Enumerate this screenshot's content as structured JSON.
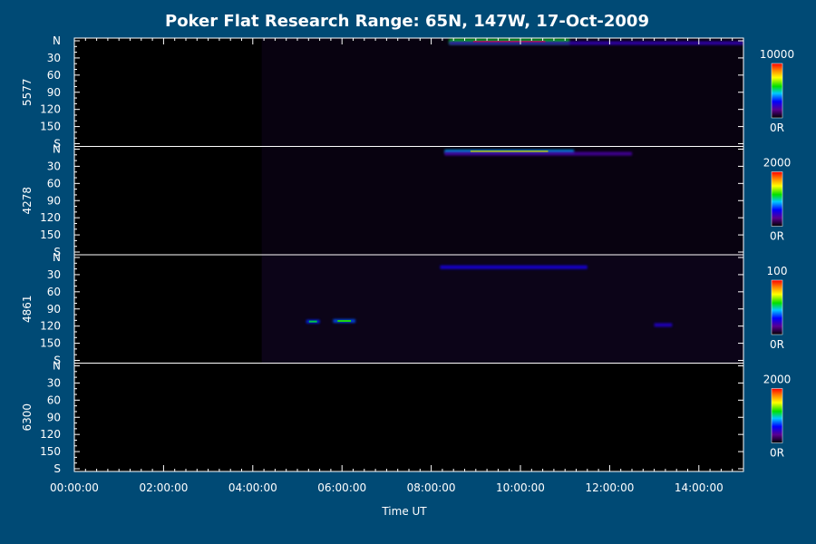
{
  "chart_data": {
    "type": "heatmap",
    "title": "Poker Flat Research Range: 65N, 147W, 17-Oct-2009",
    "xlabel": "Time UT",
    "x_ticks": [
      "00:00:00",
      "02:00:00",
      "04:00:00",
      "06:00:00",
      "08:00:00",
      "10:00:00",
      "12:00:00",
      "14:00:00"
    ],
    "x_range_hours": [
      0,
      15
    ],
    "y_ticks": [
      "N",
      "30",
      "60",
      "90",
      "120",
      "150",
      "S"
    ],
    "y_range": [
      0,
      180
    ],
    "data_start_hours": [
      4.2,
      4.2,
      4.2,
      15
    ],
    "panels": [
      {
        "name": "5577",
        "colorbar": {
          "max_label": "10000",
          "min_label": "0R"
        },
        "features": [
          {
            "t_start": 8.4,
            "t_end": 11.1,
            "y": 1.5,
            "intensity": 0.95,
            "note": "bright band"
          },
          {
            "t_start": 8.4,
            "t_end": 15.0,
            "y": 4,
            "intensity": 0.35
          }
        ]
      },
      {
        "name": "4278",
        "colorbar": {
          "max_label": "2000",
          "min_label": "0R"
        },
        "features": [
          {
            "t_start": 8.3,
            "t_end": 11.2,
            "y": 4,
            "intensity": 0.7
          },
          {
            "t_start": 8.3,
            "t_end": 12.5,
            "y": 8,
            "intensity": 0.3
          }
        ]
      },
      {
        "name": "4861",
        "colorbar": {
          "max_label": "100",
          "min_label": "0R"
        },
        "features": [
          {
            "t_start": 8.2,
            "t_end": 11.5,
            "y": 17,
            "intensity": 0.45
          },
          {
            "t_start": 5.2,
            "t_end": 5.5,
            "y": 112,
            "intensity": 0.55
          },
          {
            "t_start": 5.8,
            "t_end": 6.3,
            "y": 111,
            "intensity": 0.6
          },
          {
            "t_start": 13.0,
            "t_end": 13.4,
            "y": 118,
            "intensity": 0.4
          }
        ]
      },
      {
        "name": "6300",
        "colorbar": {
          "max_label": "2000",
          "min_label": "0R"
        },
        "features": []
      }
    ]
  }
}
